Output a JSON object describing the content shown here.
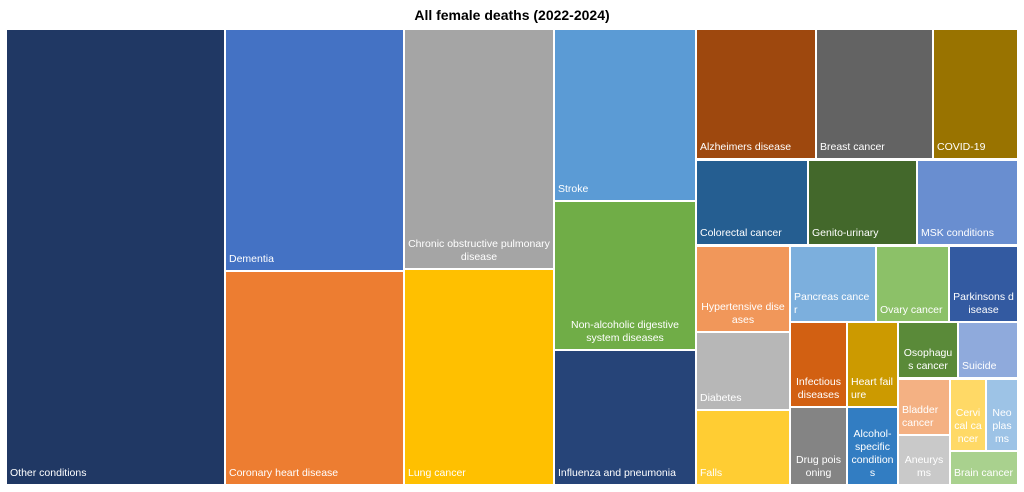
{
  "chart_data": {
    "type": "treemap",
    "title": "All female deaths (2022-2024)",
    "value_unit": "approximate % share of area",
    "items": [
      {
        "label": "Other conditions",
        "value": 21.5,
        "color": "#203864"
      },
      {
        "label": "Dementia",
        "value": 9.3,
        "color": "#4472C4"
      },
      {
        "label": "Coronary heart disease",
        "value": 8.2,
        "color": "#ED7D31"
      },
      {
        "label": "Chronic obstructive pulmonary disease",
        "value": 7.7,
        "color": "#A5A5A5"
      },
      {
        "label": "Lung cancer",
        "value": 6.9,
        "color": "#FFC000"
      },
      {
        "label": "Stroke",
        "value": 5.2,
        "color": "#5B9BD5"
      },
      {
        "label": "Non-alcoholic digestive system diseases",
        "value": 4.5,
        "color": "#70AD47"
      },
      {
        "label": "Influenza and pneumonia",
        "value": 4.1,
        "color": "#264478"
      },
      {
        "label": "Alzheimers disease",
        "value": 3.3,
        "color": "#9E480E"
      },
      {
        "label": "Breast cancer",
        "value": 3.2,
        "color": "#636363"
      },
      {
        "label": "COVID-19",
        "value": 2.3,
        "color": "#997300"
      },
      {
        "label": "Colorectal cancer",
        "value": 2.0,
        "color": "#255E91"
      },
      {
        "label": "Genito-urinary",
        "value": 1.9,
        "color": "#43682B"
      },
      {
        "label": "MSK conditions",
        "value": 1.8,
        "color": "#698ED0"
      },
      {
        "label": "Hypertensive diseases",
        "value": 1.7,
        "color": "#F1975A"
      },
      {
        "label": "Diabetes",
        "value": 1.5,
        "color": "#B7B7B7"
      },
      {
        "label": "Falls",
        "value": 1.5,
        "color": "#FFCD33"
      },
      {
        "label": "Pancreas cancer",
        "value": 1.4,
        "color": "#7CAFDD"
      },
      {
        "label": "Ovary cancer",
        "value": 1.1,
        "color": "#8CC168"
      },
      {
        "label": "Parkinsons disease",
        "value": 1.1,
        "color": "#335AA1"
      },
      {
        "label": "Infectious diseases",
        "value": 1.0,
        "color": "#D26012"
      },
      {
        "label": "Heart failure",
        "value": 0.9,
        "color": "#CC9A00"
      },
      {
        "label": "Osophagus cancer",
        "value": 0.7,
        "color": "#5A8A39"
      },
      {
        "label": "Suicide",
        "value": 0.7,
        "color": "#8FAADC"
      },
      {
        "label": "Drug poisoning",
        "value": 0.9,
        "color": "#848484"
      },
      {
        "label": "Alcohol-specific conditions",
        "value": 0.8,
        "color": "#327DC2"
      },
      {
        "label": "Bladder cancer",
        "value": 0.6,
        "color": "#F4B183"
      },
      {
        "label": "Aneurysms",
        "value": 0.5,
        "color": "#C9C9C9"
      },
      {
        "label": "Cervical cancer",
        "value": 0.5,
        "color": "#FFD966"
      },
      {
        "label": "Neoplasms",
        "value": 0.5,
        "color": "#9DC3E6"
      },
      {
        "label": "Brain cancer",
        "value": 0.5,
        "color": "#A9D18E"
      }
    ]
  }
}
